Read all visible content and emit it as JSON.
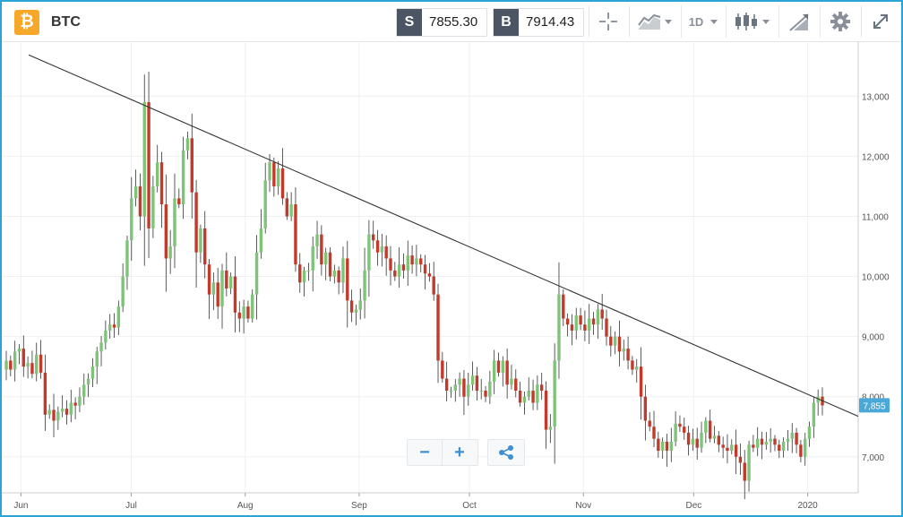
{
  "header": {
    "symbol": "BTC",
    "logo_glyph": "₿",
    "sell": {
      "tag": "S",
      "price": "7855.30"
    },
    "buy": {
      "tag": "B",
      "price": "7914.43"
    },
    "timeframe": "1D",
    "icons": [
      "crosshair-icon",
      "chart-type-icon",
      "candlestick-icon",
      "drawing-tools-icon",
      "gear-icon",
      "fullscreen-icon"
    ]
  },
  "controls": {
    "zoom_out": "−",
    "zoom_in": "+",
    "share_icon": "share-icon"
  },
  "colors": {
    "up": "#7dc478",
    "down": "#c13a2b",
    "accent": "#2aa3d6",
    "price_tag": "#4aa8d8",
    "trendline": "#333333"
  },
  "chart_data": {
    "type": "candlestick",
    "title": "",
    "xlabel": "",
    "ylabel": "",
    "x_ticks": [
      "Jun",
      "Jul",
      "Aug",
      "Sep",
      "Oct",
      "Nov",
      "Dec",
      "2020"
    ],
    "y_ticks": [
      "7,000",
      "8,000",
      "9,000",
      "10,000",
      "11,000",
      "12,000",
      "13,000"
    ],
    "ylim": [
      6400,
      13900
    ],
    "date_range": [
      "2019-05-28",
      "2020-01-05"
    ],
    "grid": true,
    "last_price_label": "7,855",
    "last_price": 7855,
    "close_series": [
      8600,
      8450,
      8750,
      8800,
      8500,
      8560,
      8380,
      8700,
      8400,
      7700,
      7780,
      7600,
      7750,
      7800,
      7700,
      7900,
      7850,
      8000,
      8200,
      8300,
      8500,
      8750,
      8900,
      9100,
      9200,
      9150,
      9500,
      10000,
      10600,
      11300,
      11500,
      11000,
      12900,
      10800,
      11500,
      11900,
      11200,
      10300,
      10500,
      11300,
      11200,
      12100,
      12300,
      11400,
      10400,
      10800,
      10200,
      9700,
      9900,
      9500,
      10100,
      9800,
      10000,
      9400,
      9300,
      9500,
      9300,
      9700,
      10400,
      10800,
      11600,
      11900,
      11500,
      11800,
      11300,
      11000,
      11200,
      10200,
      9900,
      10100,
      10100,
      10500,
      10700,
      10200,
      10400,
      10000,
      10100,
      9900,
      10300,
      9600,
      9400,
      9450,
      9600,
      10100,
      10700,
      10600,
      10400,
      10500,
      10300,
      10100,
      10000,
      10200,
      10100,
      10350,
      10200,
      10300,
      10200,
      10050,
      10000,
      9700,
      8600,
      8300,
      8100,
      8100,
      8200,
      8300,
      8000,
      8200,
      8350,
      8100,
      8100,
      8000,
      8250,
      8600,
      8400,
      8600,
      8200,
      8300,
      8100,
      7900,
      8000,
      8100,
      7900,
      8200,
      8100,
      7450,
      7500,
      8600,
      9700,
      9300,
      9200,
      9100,
      9350,
      9200,
      9100,
      9300,
      9200,
      9450,
      9300,
      9000,
      8850,
      9000,
      8750,
      8800,
      8600,
      8450,
      8500,
      8000,
      7600,
      7500,
      7300,
      7100,
      7250,
      7100,
      7250,
      7550,
      7500,
      7400,
      7200,
      7300,
      7150,
      7400,
      7600,
      7300,
      7350,
      7200,
      7150,
      7100,
      7200,
      7000,
      6900,
      6600,
      7200,
      7150,
      7300,
      7200,
      7250,
      7300,
      7200,
      7100,
      7250,
      7300,
      7400,
      7200,
      7000,
      7300,
      7500,
      7900,
      8000,
      7855
    ],
    "trendline": {
      "start": [
        "2019-05-28",
        13850
      ],
      "end": [
        "2020-01-10",
        7800
      ]
    }
  }
}
